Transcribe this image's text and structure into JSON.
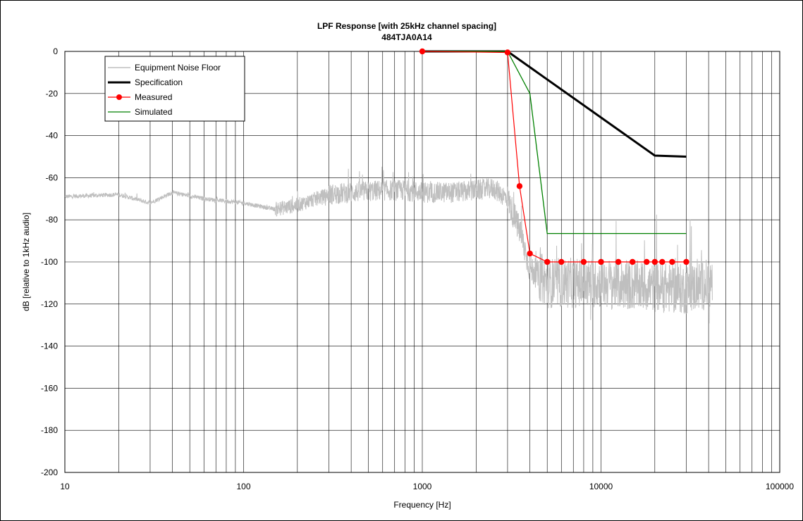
{
  "chart_data": {
    "type": "line",
    "title": "LPF Response [with 25kHz channel spacing]",
    "subtitle": "484TJA0A14",
    "xlabel": "Frequency [Hz]",
    "ylabel": "dB [relative to 1kHz audio]",
    "xscale": "log",
    "xlim": [
      10,
      100000
    ],
    "ylim": [
      -200,
      0
    ],
    "x_ticks": [
      "10",
      "100",
      "1000",
      "10000",
      "100000"
    ],
    "y_ticks": [
      "0",
      "-20",
      "-40",
      "-60",
      "-80",
      "-100",
      "-120",
      "-140",
      "-160",
      "-180",
      "-200"
    ],
    "grid": true,
    "legend_position": "top-left",
    "series": [
      {
        "name": "Equipment Noise Floor",
        "color": "#bfbfbf",
        "style": "noisy line",
        "x": [
          10,
          20,
          30,
          40,
          60,
          100,
          150,
          200,
          300,
          400,
          600,
          800,
          1000,
          1500,
          2000,
          2500,
          3000,
          3500,
          4000,
          5000,
          10000,
          20000,
          30000,
          42000
        ],
        "y": [
          -69,
          -68,
          -72,
          -67,
          -70,
          -72,
          -75,
          -73,
          -68,
          -67,
          -66,
          -66,
          -67,
          -67,
          -66,
          -65,
          -70,
          -85,
          -103,
          -110,
          -110,
          -112,
          -113,
          -110
        ]
      },
      {
        "name": "Specification",
        "color": "#000000",
        "x": [
          1000,
          3000,
          20000,
          30000
        ],
        "y": [
          0,
          0,
          -49.5,
          -50
        ]
      },
      {
        "name": "Measured",
        "color": "#ff0000",
        "marker": "circle",
        "x": [
          1000,
          3000,
          3500,
          4000,
          5000,
          6000,
          8000,
          10000,
          12500,
          15000,
          18000,
          20000,
          22000,
          25000,
          30000
        ],
        "y": [
          0,
          -0.5,
          -64,
          -96,
          -100,
          -100,
          -100,
          -100,
          -100,
          -100,
          -100,
          -100,
          -100,
          -100,
          -100
        ]
      },
      {
        "name": "Simulated",
        "color": "#008000",
        "x": [
          1000,
          3000,
          4000,
          5000,
          30000
        ],
        "y": [
          0,
          0,
          -20,
          -86.5,
          -86.5
        ]
      }
    ]
  }
}
